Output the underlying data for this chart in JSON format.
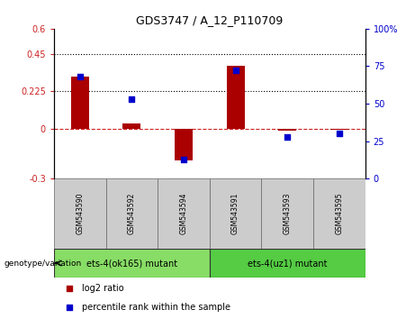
{
  "title": "GDS3747 / A_12_P110709",
  "samples": [
    "GSM543590",
    "GSM543592",
    "GSM543594",
    "GSM543591",
    "GSM543593",
    "GSM543595"
  ],
  "log2_ratio": [
    0.31,
    0.03,
    -0.19,
    0.38,
    -0.01,
    -0.005
  ],
  "percentile": [
    68,
    53,
    13,
    72,
    28,
    30
  ],
  "ylim_left": [
    -0.3,
    0.6
  ],
  "ylim_right": [
    0,
    100
  ],
  "yticks_left": [
    -0.3,
    0,
    0.225,
    0.45,
    0.6
  ],
  "yticks_right": [
    0,
    25,
    50,
    75,
    100
  ],
  "hlines": [
    0.225,
    0.45
  ],
  "bar_color": "#aa0000",
  "dot_color": "#0000cc",
  "zero_line_color": "#cc2222",
  "group1_label": "ets-4(ok165) mutant",
  "group2_label": "ets-4(uz1) mutant",
  "group1_color": "#88dd66",
  "group2_color": "#55cc44",
  "group1_indices": [
    0,
    1,
    2
  ],
  "group2_indices": [
    3,
    4,
    5
  ],
  "legend_log2": "log2 ratio",
  "legend_pct": "percentile rank within the sample",
  "genotype_label": "genotype/variation",
  "cell_color": "#cccccc",
  "bar_width": 0.35
}
